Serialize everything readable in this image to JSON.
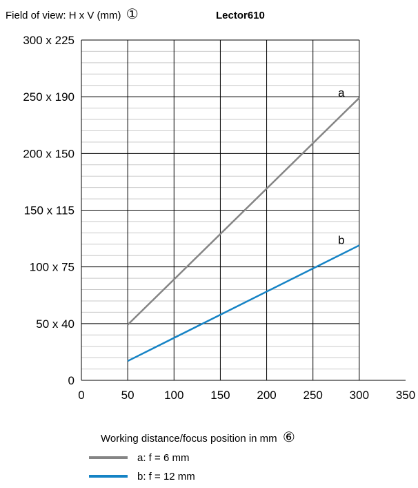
{
  "header": {
    "ylabel_text": "Field of view: H x V (mm)",
    "ylabel_marker": "①",
    "product": "Lector610"
  },
  "chart_data": {
    "type": "line",
    "title": "Lector610",
    "ylabel": "Field of view: H x V (mm)",
    "xlabel": "Working distance/focus position in mm",
    "xlabel_marker": "⑥",
    "xlim": [
      0,
      350
    ],
    "ylim": [
      0,
      300
    ],
    "grid": true,
    "x_ticks": [
      0,
      50,
      100,
      150,
      200,
      250,
      300,
      350
    ],
    "x_tick_labels": [
      "0",
      "50",
      "100",
      "150",
      "200",
      "250",
      "300",
      "350"
    ],
    "y_ticks": [
      0,
      50,
      100,
      150,
      200,
      250,
      300
    ],
    "y_tick_labels": [
      "0",
      "50 x 40",
      "100 x 75",
      "150 x 115",
      "200 x 150",
      "250 x 190",
      "300 x 225"
    ],
    "series": [
      {
        "name": "a: f = 6 mm",
        "tag": "a",
        "color": "#858585",
        "x": [
          50,
          300
        ],
        "y": [
          49,
          249
        ]
      },
      {
        "name": "b: f = 12 mm",
        "tag": "b",
        "color": "#1583c5",
        "x": [
          50,
          300
        ],
        "y": [
          17,
          119
        ]
      }
    ],
    "legend_position": "bottom-left"
  }
}
